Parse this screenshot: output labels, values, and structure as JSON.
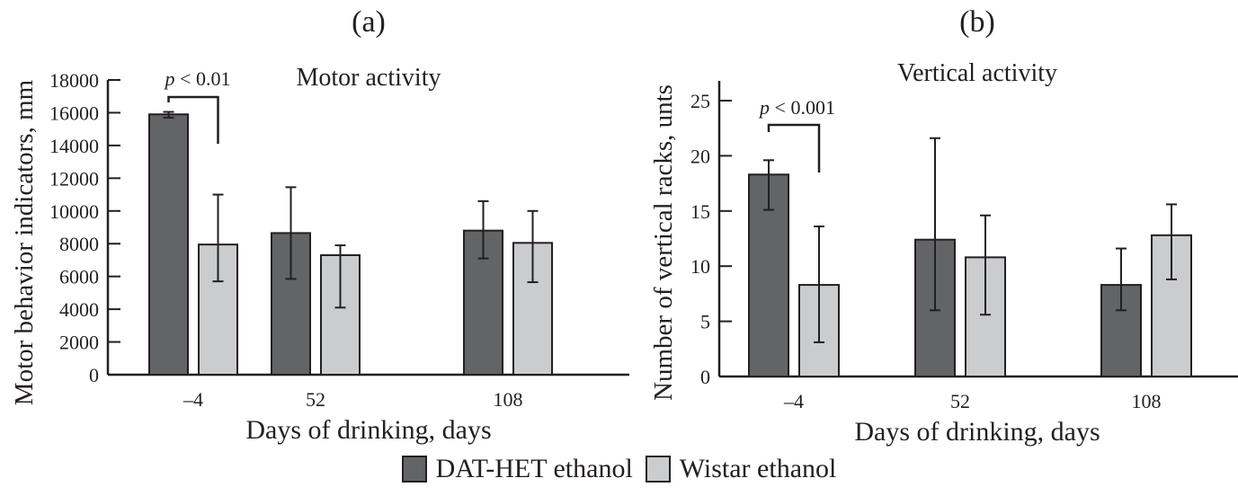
{
  "colors": {
    "dat_het": "#636466",
    "wistar": "#cbcccd",
    "ink": "#231f20"
  },
  "legend": [
    {
      "label": "DAT-HET ethanol",
      "color_key": "dat_het"
    },
    {
      "label": "Wistar ethanol",
      "color_key": "wistar"
    }
  ],
  "chart_data": [
    {
      "type": "bar",
      "panel_label": "(a)",
      "title": "Motor activity",
      "xlabel": "Days of drinking, days",
      "ylabel": "Motor behavior indicators, mm",
      "categories": [
        "–4",
        "52",
        "108"
      ],
      "ylim": [
        0,
        18000
      ],
      "yticks": [
        0,
        2000,
        4000,
        6000,
        8000,
        10000,
        12000,
        14000,
        16000,
        18000
      ],
      "grid": false,
      "series": [
        {
          "name": "DAT-HET ethanol",
          "values": [
            15900,
            8650,
            8800
          ],
          "err_low": [
            15700,
            5850,
            7100
          ],
          "err_high": [
            16050,
            11450,
            10600
          ]
        },
        {
          "name": "Wistar ethanol",
          "values": [
            7950,
            7300,
            8050
          ],
          "err_low": [
            5700,
            4100,
            5650
          ],
          "err_high": [
            11000,
            7900,
            10000
          ]
        }
      ],
      "annotation": {
        "text": "p < 0.01",
        "category_index": 0
      }
    },
    {
      "type": "bar",
      "panel_label": "(b)",
      "title": "Vertical activity",
      "xlabel": "Days of drinking, days",
      "ylabel": "Number of vertical racks, unts",
      "categories": [
        "–4",
        "52",
        "108"
      ],
      "ylim": [
        0,
        25
      ],
      "yticks": [
        0,
        5,
        10,
        15,
        20,
        25
      ],
      "grid": false,
      "series": [
        {
          "name": "DAT-HET ethanol",
          "values": [
            18.3,
            12.4,
            8.3
          ],
          "err_low": [
            15.1,
            6.0,
            6.0
          ],
          "err_high": [
            19.6,
            21.6,
            11.6
          ]
        },
        {
          "name": "Wistar ethanol",
          "values": [
            8.3,
            10.8,
            12.8
          ],
          "err_low": [
            3.1,
            5.6,
            8.8
          ],
          "err_high": [
            13.6,
            14.6,
            15.6
          ]
        }
      ],
      "annotation": {
        "text": "p < 0.001",
        "category_index": 0
      }
    }
  ]
}
